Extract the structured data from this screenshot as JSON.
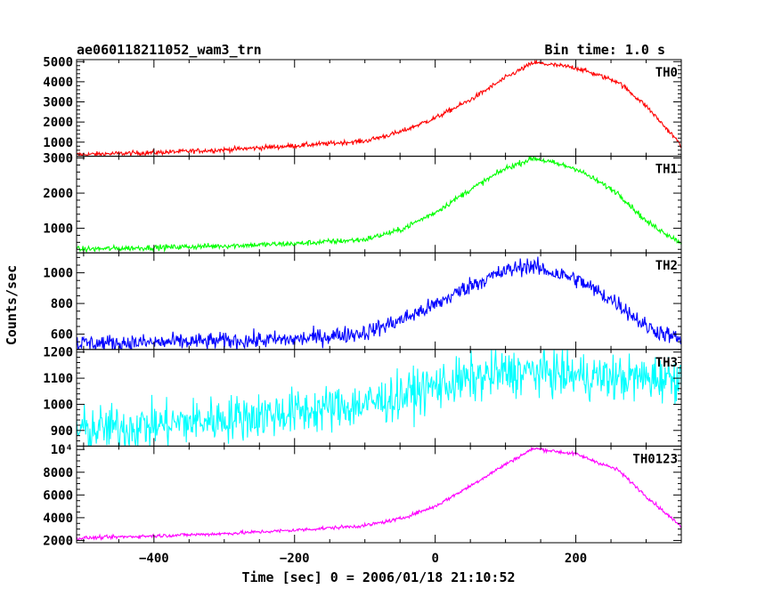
{
  "header": {
    "title": "ae060118211052_wam3_trn",
    "bin_time": "Bin time: 1.0 s"
  },
  "chart_data": {
    "type": "line",
    "xlabel": "Time [sec] 0 = 2006/01/18 21:10:52",
    "ylabel": "Counts/sec",
    "xlim": [
      -510,
      350
    ],
    "x_ticks": [
      -400,
      -200,
      0,
      200
    ],
    "x_tick_labels": [
      "−400",
      "−200",
      "0",
      "200"
    ],
    "grid": false,
    "series": [
      {
        "name": "TH0",
        "color": "#ff0000",
        "ylim": [
          300,
          5100
        ],
        "y_ticks": [
          1000,
          2000,
          3000,
          4000,
          5000
        ],
        "y_tick_labels": [
          "1000",
          "2000",
          "3000",
          "4000",
          "5000"
        ],
        "noise": 60,
        "points": [
          [
            -510,
            380
          ],
          [
            -400,
            480
          ],
          [
            -300,
            620
          ],
          [
            -200,
            820
          ],
          [
            -100,
            1050
          ],
          [
            -50,
            1500
          ],
          [
            0,
            2200
          ],
          [
            50,
            3100
          ],
          [
            100,
            4200
          ],
          [
            140,
            4950
          ],
          [
            200,
            4700
          ],
          [
            260,
            4000
          ],
          [
            300,
            2800
          ],
          [
            350,
            850
          ]
        ]
      },
      {
        "name": "TH1",
        "color": "#00ff00",
        "ylim": [
          300,
          3050
        ],
        "y_ticks": [
          1000,
          2000,
          3000
        ],
        "y_tick_labels": [
          "1000",
          "2000",
          "3000"
        ],
        "noise": 40,
        "points": [
          [
            -510,
            400
          ],
          [
            -400,
            450
          ],
          [
            -300,
            500
          ],
          [
            -200,
            560
          ],
          [
            -100,
            680
          ],
          [
            -50,
            950
          ],
          [
            0,
            1450
          ],
          [
            50,
            2100
          ],
          [
            100,
            2700
          ],
          [
            140,
            3000
          ],
          [
            200,
            2700
          ],
          [
            260,
            2000
          ],
          [
            300,
            1200
          ],
          [
            350,
            580
          ]
        ]
      },
      {
        "name": "TH2",
        "color": "#0000ff",
        "ylim": [
          500,
          1130
        ],
        "y_ticks": [
          600,
          800,
          1000
        ],
        "y_tick_labels": [
          "600",
          "800",
          "1000"
        ],
        "noise": 28,
        "points": [
          [
            -510,
            540
          ],
          [
            -400,
            545
          ],
          [
            -300,
            555
          ],
          [
            -200,
            565
          ],
          [
            -100,
            610
          ],
          [
            -50,
            690
          ],
          [
            0,
            790
          ],
          [
            50,
            920
          ],
          [
            100,
            1010
          ],
          [
            130,
            1050
          ],
          [
            200,
            960
          ],
          [
            260,
            800
          ],
          [
            300,
            650
          ],
          [
            350,
            560
          ]
        ]
      },
      {
        "name": "TH3",
        "color": "#00ffff",
        "ylim": [
          840,
          1210
        ],
        "y_ticks": [
          900,
          1000,
          1100,
          1200
        ],
        "y_tick_labels": [
          "900",
          "1000",
          "1100",
          "1200"
        ],
        "noise": 45,
        "points": [
          [
            -510,
            900
          ],
          [
            -400,
            920
          ],
          [
            -300,
            945
          ],
          [
            -200,
            970
          ],
          [
            -100,
            1000
          ],
          [
            -50,
            1030
          ],
          [
            0,
            1070
          ],
          [
            50,
            1095
          ],
          [
            100,
            1120
          ],
          [
            150,
            1125
          ],
          [
            200,
            1110
          ],
          [
            260,
            1100
          ],
          [
            300,
            1100
          ],
          [
            350,
            1105
          ]
        ]
      },
      {
        "name": "TH0123",
        "color": "#ff00ff",
        "ylim": [
          1800,
          10300
        ],
        "y_ticks": [
          2000,
          4000,
          6000,
          8000,
          10000
        ],
        "y_tick_labels": [
          "2000",
          "4000",
          "6000",
          "8000",
          "10⁴"
        ],
        "noise": 80,
        "points": [
          [
            -510,
            2200
          ],
          [
            -400,
            2400
          ],
          [
            -300,
            2600
          ],
          [
            -200,
            2900
          ],
          [
            -100,
            3300
          ],
          [
            -50,
            3900
          ],
          [
            0,
            5000
          ],
          [
            50,
            6800
          ],
          [
            100,
            8700
          ],
          [
            140,
            10100
          ],
          [
            200,
            9600
          ],
          [
            260,
            8200
          ],
          [
            300,
            5900
          ],
          [
            350,
            3200
          ]
        ]
      }
    ]
  }
}
